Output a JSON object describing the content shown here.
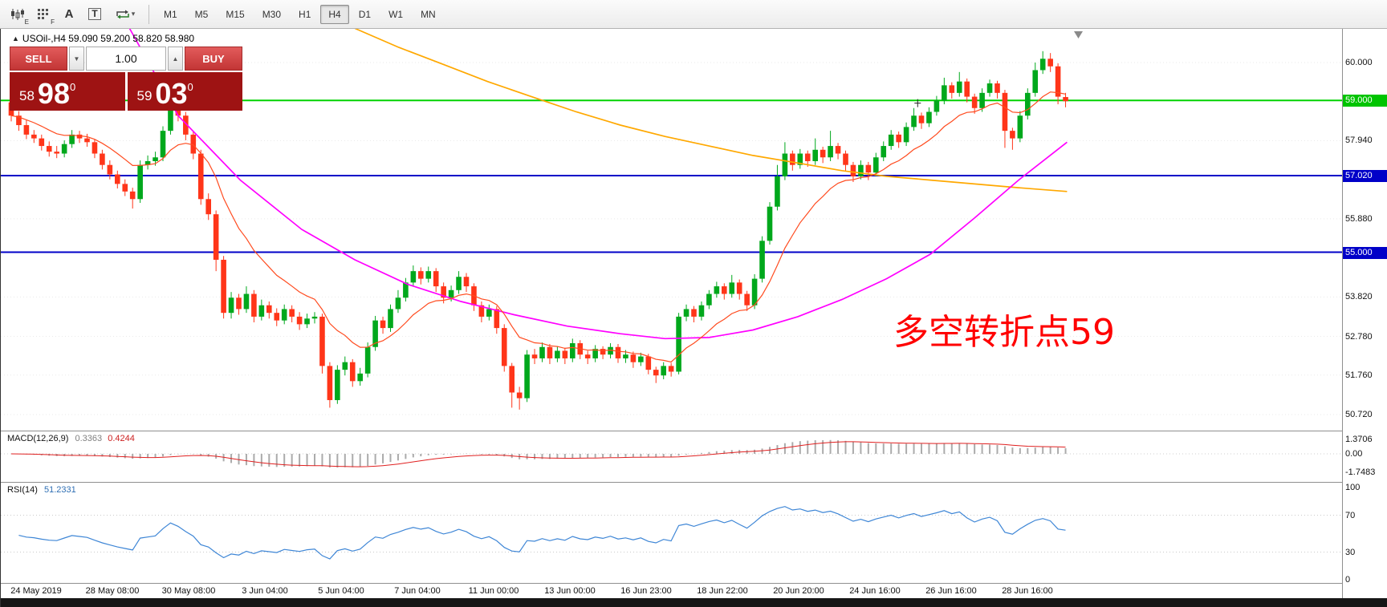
{
  "toolbar": {
    "icons": [
      {
        "name": "indicators-icon",
        "sub": "E"
      },
      {
        "name": "grid-icon",
        "sub": "F"
      },
      {
        "name": "text-label-icon",
        "glyph": "A"
      },
      {
        "name": "text-box-icon",
        "glyph": "T"
      },
      {
        "name": "cursor-tools-icon",
        "glyph": ""
      }
    ],
    "timeframes": [
      {
        "label": "M1"
      },
      {
        "label": "M5"
      },
      {
        "label": "M15"
      },
      {
        "label": "M30"
      },
      {
        "label": "H1"
      },
      {
        "label": "H4",
        "active": true
      },
      {
        "label": "D1"
      },
      {
        "label": "W1"
      },
      {
        "label": "MN"
      }
    ]
  },
  "chart": {
    "symbol_header": "USOil-,H4  59.090 59.200 58.820 58.980",
    "trade_panel": {
      "sell_label": "SELL",
      "buy_label": "BUY",
      "volume": "1.00",
      "sell_price": {
        "small": "58",
        "big": "98",
        "sup": "0"
      },
      "buy_price": {
        "small": "59",
        "big": "03",
        "sup": "0"
      }
    },
    "annotation": "多空转折点59",
    "hlines": [
      {
        "price": 59.0,
        "color": "#00d200",
        "label": "59.000"
      },
      {
        "price": 57.02,
        "color": "#0000c8",
        "label": "57.020"
      },
      {
        "price": 55.0,
        "color": "#0000c8",
        "label": "55.000"
      }
    ],
    "price_axis": {
      "labels": [
        {
          "text": "60.000",
          "price": 60.0
        },
        {
          "text": "59.000",
          "price": 59.0,
          "tag": "green"
        },
        {
          "text": "57.940",
          "price": 57.94
        },
        {
          "text": "57.020",
          "price": 57.02,
          "tag": "blue"
        },
        {
          "text": "55.880",
          "price": 55.88
        },
        {
          "text": "55.000",
          "price": 55.0,
          "tag": "blue"
        },
        {
          "text": "53.820",
          "price": 53.82
        },
        {
          "text": "52.780",
          "price": 52.78
        },
        {
          "text": "51.760",
          "price": 51.76
        },
        {
          "text": "50.720",
          "price": 50.72
        }
      ],
      "grid": [
        60.0,
        57.94,
        55.88,
        53.82,
        52.78,
        51.76,
        50.72
      ]
    },
    "time_axis": [
      "24 May 2019",
      "28 May 08:00",
      "30 May 08:00",
      "3 Jun 04:00",
      "5 Jun 04:00",
      "7 Jun 04:00",
      "11 Jun 00:00",
      "13 Jun 00:00",
      "16 Jun 23:00",
      "18 Jun 22:00",
      "20 Jun 20:00",
      "24 Jun 16:00",
      "26 Jun 16:00",
      "28 Jun 16:00"
    ],
    "colors": {
      "bull": "#00a81c",
      "bear": "#ff3519",
      "ma_fast": "#ff4b1f",
      "ma_mid": "#ff00ff",
      "ma_slow": "#ffa800",
      "grid": "#eaeaea",
      "macd_hist": "#ababab",
      "macd_signal": "#e02020",
      "rsi": "#3e86d6",
      "annotation": "#ff0000"
    }
  },
  "chart_data": {
    "type": "candlestick",
    "symbol": "USOil-",
    "timeframe": "H4",
    "quote": {
      "open": "59.090",
      "high": "59.200",
      "low": "58.820",
      "close": "58.980"
    },
    "price_range": [
      50.3,
      60.89
    ],
    "ohlc": [
      [
        58.95,
        59.1,
        58.45,
        58.6
      ],
      [
        58.6,
        58.72,
        58.2,
        58.35
      ],
      [
        58.35,
        58.48,
        57.98,
        58.1
      ],
      [
        58.1,
        58.22,
        57.88,
        58.0
      ],
      [
        58.0,
        58.1,
        57.68,
        57.8
      ],
      [
        57.8,
        57.92,
        57.52,
        57.65
      ],
      [
        57.65,
        57.8,
        57.48,
        57.6
      ],
      [
        57.6,
        57.95,
        57.5,
        57.85
      ],
      [
        57.85,
        58.22,
        57.75,
        58.1
      ],
      [
        58.1,
        58.2,
        57.88,
        58.0
      ],
      [
        58.0,
        58.12,
        57.78,
        57.9
      ],
      [
        57.9,
        57.98,
        57.48,
        57.6
      ],
      [
        57.6,
        57.7,
        57.18,
        57.3
      ],
      [
        57.3,
        57.42,
        56.92,
        57.05
      ],
      [
        57.05,
        57.15,
        56.68,
        56.8
      ],
      [
        56.8,
        56.92,
        56.48,
        56.6
      ],
      [
        56.6,
        56.7,
        56.15,
        56.4
      ],
      [
        56.4,
        57.42,
        56.3,
        57.3
      ],
      [
        57.3,
        57.55,
        57.18,
        57.4
      ],
      [
        57.4,
        57.65,
        57.28,
        57.5
      ],
      [
        57.5,
        58.32,
        57.4,
        58.2
      ],
      [
        58.2,
        59.15,
        58.1,
        58.9
      ],
      [
        58.9,
        59.0,
        58.45,
        58.6
      ],
      [
        58.6,
        58.7,
        57.95,
        58.1
      ],
      [
        58.1,
        58.2,
        57.45,
        57.6
      ],
      [
        57.6,
        57.7,
        56.25,
        56.4
      ],
      [
        56.4,
        56.55,
        55.85,
        56.0
      ],
      [
        56.0,
        56.1,
        54.5,
        54.8
      ],
      [
        54.8,
        54.9,
        53.25,
        53.4
      ],
      [
        53.4,
        53.95,
        53.25,
        53.8
      ],
      [
        53.8,
        53.9,
        53.35,
        53.5
      ],
      [
        53.5,
        54.1,
        53.4,
        53.9
      ],
      [
        53.9,
        54.0,
        53.15,
        53.3
      ],
      [
        53.3,
        53.75,
        53.2,
        53.6
      ],
      [
        53.6,
        53.7,
        53.25,
        53.4
      ],
      [
        53.4,
        53.52,
        53.05,
        53.2
      ],
      [
        53.2,
        53.62,
        53.1,
        53.5
      ],
      [
        53.5,
        53.6,
        53.15,
        53.3
      ],
      [
        53.3,
        53.42,
        52.95,
        53.1
      ],
      [
        53.1,
        53.38,
        53.0,
        53.25
      ],
      [
        53.25,
        53.42,
        53.12,
        53.3
      ],
      [
        53.3,
        53.38,
        51.8,
        52.0
      ],
      [
        52.0,
        52.1,
        50.9,
        51.1
      ],
      [
        51.1,
        52.02,
        51.0,
        51.9
      ],
      [
        51.9,
        52.25,
        51.75,
        52.1
      ],
      [
        52.1,
        52.18,
        51.45,
        51.6
      ],
      [
        51.6,
        51.95,
        51.48,
        51.8
      ],
      [
        51.8,
        52.62,
        51.7,
        52.5
      ],
      [
        52.5,
        53.32,
        52.4,
        53.2
      ],
      [
        53.2,
        53.3,
        52.85,
        53.0
      ],
      [
        53.0,
        53.62,
        52.9,
        53.5
      ],
      [
        53.5,
        54.0,
        53.4,
        53.8
      ],
      [
        53.8,
        54.32,
        53.7,
        54.2
      ],
      [
        54.2,
        54.65,
        54.1,
        54.5
      ],
      [
        54.5,
        54.6,
        54.15,
        54.3
      ],
      [
        54.3,
        54.62,
        54.2,
        54.5
      ],
      [
        54.5,
        54.58,
        53.95,
        54.1
      ],
      [
        54.1,
        54.2,
        53.65,
        53.8
      ],
      [
        53.8,
        54.12,
        53.7,
        54.0
      ],
      [
        54.0,
        54.5,
        53.9,
        54.35
      ],
      [
        54.35,
        54.45,
        53.95,
        54.1
      ],
      [
        54.1,
        54.18,
        53.45,
        53.6
      ],
      [
        53.6,
        53.7,
        53.15,
        53.3
      ],
      [
        53.3,
        53.62,
        53.2,
        53.5
      ],
      [
        53.5,
        53.58,
        52.85,
        53.0
      ],
      [
        53.0,
        53.1,
        51.85,
        52.0
      ],
      [
        52.0,
        52.08,
        50.9,
        51.3
      ],
      [
        51.3,
        51.45,
        50.85,
        51.15
      ],
      [
        51.15,
        52.42,
        51.05,
        52.3
      ],
      [
        52.3,
        52.45,
        52.05,
        52.2
      ],
      [
        52.2,
        52.62,
        52.1,
        52.5
      ],
      [
        52.5,
        52.58,
        52.05,
        52.2
      ],
      [
        52.2,
        52.52,
        52.1,
        52.4
      ],
      [
        52.4,
        52.48,
        52.05,
        52.2
      ],
      [
        52.2,
        52.72,
        52.1,
        52.6
      ],
      [
        52.6,
        52.68,
        52.18,
        52.3
      ],
      [
        52.3,
        52.4,
        52.05,
        52.2
      ],
      [
        52.2,
        52.55,
        52.1,
        52.45
      ],
      [
        52.45,
        52.52,
        52.18,
        52.3
      ],
      [
        52.3,
        52.6,
        52.2,
        52.5
      ],
      [
        52.5,
        52.58,
        52.08,
        52.2
      ],
      [
        52.2,
        52.42,
        52.08,
        52.3
      ],
      [
        52.3,
        52.38,
        51.95,
        52.1
      ],
      [
        52.1,
        52.35,
        52.0,
        52.25
      ],
      [
        52.25,
        52.32,
        51.78,
        51.9
      ],
      [
        51.9,
        51.98,
        51.55,
        51.75
      ],
      [
        51.75,
        52.1,
        51.65,
        52.0
      ],
      [
        52.0,
        52.08,
        51.72,
        51.85
      ],
      [
        51.85,
        53.4,
        51.78,
        53.3
      ],
      [
        53.3,
        53.62,
        53.18,
        53.5
      ],
      [
        53.5,
        53.58,
        53.15,
        53.3
      ],
      [
        53.3,
        53.7,
        53.2,
        53.6
      ],
      [
        53.6,
        54.0,
        53.5,
        53.9
      ],
      [
        53.9,
        54.22,
        53.8,
        54.1
      ],
      [
        54.1,
        54.18,
        53.75,
        53.9
      ],
      [
        53.9,
        54.4,
        53.8,
        54.2
      ],
      [
        54.2,
        54.28,
        53.75,
        53.9
      ],
      [
        53.9,
        53.98,
        53.45,
        53.6
      ],
      [
        53.6,
        54.42,
        53.5,
        54.3
      ],
      [
        54.3,
        55.42,
        54.2,
        55.3
      ],
      [
        55.3,
        56.32,
        55.2,
        56.2
      ],
      [
        56.2,
        57.3,
        56.1,
        57.0
      ],
      [
        57.0,
        57.9,
        56.9,
        57.6
      ],
      [
        57.6,
        57.68,
        57.15,
        57.3
      ],
      [
        57.3,
        57.72,
        57.2,
        57.6
      ],
      [
        57.6,
        57.68,
        57.25,
        57.4
      ],
      [
        57.4,
        58.0,
        57.3,
        57.7
      ],
      [
        57.7,
        57.78,
        57.35,
        57.5
      ],
      [
        57.5,
        58.2,
        57.4,
        57.8
      ],
      [
        57.8,
        57.88,
        57.45,
        57.6
      ],
      [
        57.6,
        57.68,
        57.15,
        57.3
      ],
      [
        57.3,
        57.38,
        56.85,
        57.0
      ],
      [
        57.0,
        57.42,
        56.92,
        57.3
      ],
      [
        57.3,
        57.38,
        56.9,
        57.1
      ],
      [
        57.1,
        57.62,
        57.0,
        57.5
      ],
      [
        57.5,
        57.92,
        57.4,
        57.8
      ],
      [
        57.8,
        58.22,
        57.7,
        58.1
      ],
      [
        58.1,
        58.18,
        57.75,
        57.9
      ],
      [
        57.9,
        58.42,
        57.8,
        58.3
      ],
      [
        58.3,
        58.8,
        58.2,
        58.6
      ],
      [
        58.6,
        58.68,
        58.25,
        58.4
      ],
      [
        58.4,
        58.82,
        58.3,
        58.7
      ],
      [
        58.7,
        59.12,
        58.6,
        59.0
      ],
      [
        59.0,
        59.6,
        58.9,
        59.4
      ],
      [
        59.4,
        59.48,
        59.05,
        59.2
      ],
      [
        59.2,
        59.75,
        59.1,
        59.5
      ],
      [
        59.5,
        59.58,
        58.95,
        59.1
      ],
      [
        59.1,
        59.18,
        58.65,
        58.8
      ],
      [
        58.8,
        59.32,
        58.7,
        59.2
      ],
      [
        59.2,
        59.55,
        59.1,
        59.45
      ],
      [
        59.45,
        59.52,
        59.05,
        59.2
      ],
      [
        59.2,
        59.28,
        57.75,
        58.2
      ],
      [
        58.2,
        58.28,
        57.7,
        58.0
      ],
      [
        58.0,
        58.72,
        57.9,
        58.6
      ],
      [
        58.6,
        59.32,
        58.5,
        59.2
      ],
      [
        59.2,
        60.0,
        59.1,
        59.8
      ],
      [
        59.8,
        60.3,
        59.7,
        60.1
      ],
      [
        60.1,
        60.25,
        59.75,
        59.9
      ],
      [
        59.9,
        59.98,
        58.9,
        59.1
      ],
      [
        59.09,
        59.2,
        58.82,
        58.98
      ]
    ],
    "ma_mid_points": [
      [
        15.6,
        60.9
      ],
      [
        22,
        58.6
      ],
      [
        30.2,
        56.9
      ],
      [
        38.3,
        55.6
      ],
      [
        45.3,
        54.8
      ],
      [
        52.3,
        54.15
      ],
      [
        59.3,
        53.7
      ],
      [
        66.3,
        53.35
      ],
      [
        73.3,
        53.05
      ],
      [
        80.3,
        52.85
      ],
      [
        86.2,
        52.72
      ],
      [
        92,
        52.75
      ],
      [
        97.8,
        52.95
      ],
      [
        103.7,
        53.3
      ],
      [
        109.5,
        53.75
      ],
      [
        115.4,
        54.3
      ],
      [
        121.2,
        54.95
      ],
      [
        127,
        55.9
      ],
      [
        132.8,
        56.9
      ],
      [
        139.2,
        57.9
      ]
    ],
    "ma_slow_points": [
      [
        45.3,
        60.9
      ],
      [
        51.1,
        60.4
      ],
      [
        57,
        59.95
      ],
      [
        62.8,
        59.5
      ],
      [
        68.6,
        59.1
      ],
      [
        74.5,
        58.7
      ],
      [
        80.3,
        58.35
      ],
      [
        86.2,
        58.05
      ],
      [
        92,
        57.8
      ],
      [
        97.8,
        57.55
      ],
      [
        103.7,
        57.35
      ],
      [
        109.5,
        57.15
      ],
      [
        115.4,
        57.0
      ],
      [
        121.2,
        56.9
      ],
      [
        127,
        56.8
      ],
      [
        132.8,
        56.7
      ],
      [
        139.2,
        56.6
      ]
    ],
    "marker": {
      "bar": 119.5,
      "price": 58.93
    },
    "macd": {
      "label": "MACD(12,26,9)",
      "value_main": "0.3363",
      "value_signal": "0.4244",
      "params": [
        12,
        26,
        9
      ],
      "axis": [
        {
          "text": "1.3706",
          "value": 1.3706
        },
        {
          "text": "0.00",
          "value": 0
        },
        {
          "text": "-1.7483",
          "value": -1.7483
        }
      ]
    },
    "rsi": {
      "label": "RSI(14)",
      "value": "51.2331",
      "period": 14,
      "levels": [
        70,
        30
      ],
      "axis": [
        {
          "text": "100",
          "value": 100
        },
        {
          "text": "70",
          "value": 70
        },
        {
          "text": "30",
          "value": 30
        },
        {
          "text": "0",
          "value": 0
        }
      ]
    }
  }
}
